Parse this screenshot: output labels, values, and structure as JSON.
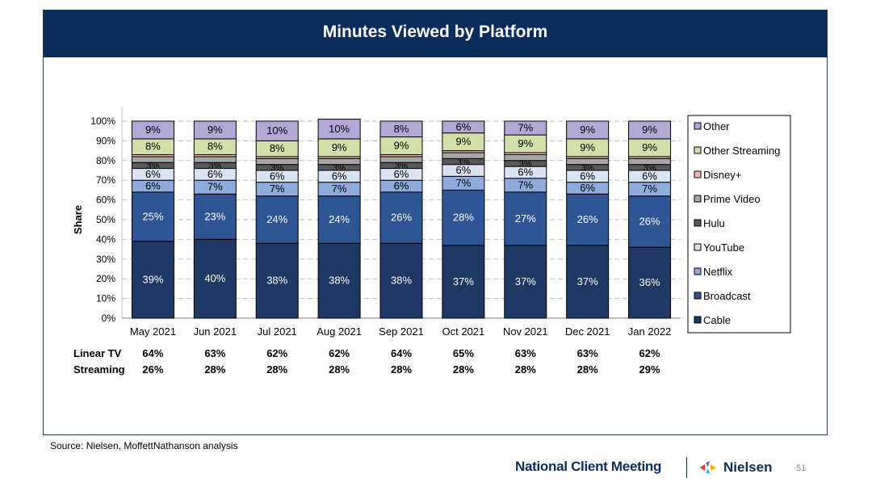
{
  "header": {
    "title": "Minutes Viewed by Platform"
  },
  "source": "Source: Nielsen, MoffettNathanson analysis",
  "footer": {
    "brand": "National Client Meeting",
    "logo_name": "Nielsen",
    "page_number": "51"
  },
  "chart_data": {
    "type": "bar",
    "stacked": true,
    "ylabel": "Share",
    "ylim": [
      0,
      100
    ],
    "y_ticks": [
      "0%",
      "10%",
      "20%",
      "30%",
      "40%",
      "50%",
      "60%",
      "70%",
      "80%",
      "90%",
      "100%"
    ],
    "grid": "dashed horizontal",
    "legend_position": "right",
    "categories": [
      "May 2021",
      "Jun 2021",
      "Jul 2021",
      "Aug 2021",
      "Sep 2021",
      "Oct 2021",
      "Nov 2021",
      "Dec 2021",
      "Jan 2022"
    ],
    "series": [
      {
        "name": "Cable",
        "color": "#203864",
        "values": [
          39,
          40,
          38,
          38,
          38,
          37,
          37,
          37,
          36
        ]
      },
      {
        "name": "Broadcast",
        "color": "#2f5597",
        "values": [
          25,
          23,
          24,
          24,
          26,
          28,
          27,
          26,
          26
        ]
      },
      {
        "name": "Netflix",
        "color": "#8faadc",
        "values": [
          6,
          7,
          7,
          7,
          6,
          7,
          7,
          6,
          7
        ]
      },
      {
        "name": "YouTube",
        "color": "#dae3f3",
        "values": [
          6,
          6,
          6,
          6,
          6,
          6,
          6,
          6,
          6
        ]
      },
      {
        "name": "Hulu",
        "color": "#595959",
        "values": [
          3,
          3,
          3,
          3,
          3,
          3,
          3,
          3,
          3
        ]
      },
      {
        "name": "Prime Video",
        "color": "#a6a6a6",
        "values": [
          3,
          3,
          3,
          3,
          3,
          3,
          3,
          3,
          3
        ]
      },
      {
        "name": "Disney+",
        "color": "#f4b6b6",
        "values": [
          1,
          1,
          1,
          1,
          1,
          1,
          1,
          1,
          1
        ]
      },
      {
        "name": "Other Streaming",
        "color": "#d3dfa8",
        "values": [
          8,
          8,
          8,
          9,
          9,
          9,
          9,
          9,
          9
        ]
      },
      {
        "name": "Other",
        "color": "#b4a7d6",
        "values": [
          9,
          9,
          10,
          10,
          8,
          6,
          7,
          9,
          9
        ]
      }
    ],
    "labels": [
      [
        "39%",
        "40%",
        "38%",
        "38%",
        "38%",
        "37%",
        "37%",
        "37%",
        "36%"
      ],
      [
        "25%",
        "23%",
        "24%",
        "24%",
        "26%",
        "28%",
        "27%",
        "26%",
        "26%"
      ],
      [
        "6%",
        "7%",
        "7%",
        "7%",
        "6%",
        "7%",
        "7%",
        "6%",
        "7%"
      ],
      [
        "6%",
        "6%",
        "6%",
        "6%",
        "6%",
        "6%",
        "6%",
        "6%",
        "6%"
      ],
      [
        "3%",
        "3%",
        "3%",
        "3%",
        "3%",
        "3%",
        "3%",
        "3%",
        "3%"
      ],
      [
        "",
        "",
        "",
        "",
        "",
        "",
        "",
        "",
        ""
      ],
      [
        "",
        "",
        "",
        "",
        "",
        "",
        "",
        "",
        ""
      ],
      [
        "8%",
        "8%",
        "8%",
        "9%",
        "9%",
        "9%",
        "9%",
        "9%",
        "9%"
      ],
      [
        "9%",
        "9%",
        "10%",
        "10%",
        "8%",
        "6%",
        "7%",
        "9%",
        "9%"
      ]
    ],
    "legend_order": [
      "Other",
      "Other Streaming",
      "Disney+",
      "Prime Video",
      "Hulu",
      "YouTube",
      "Netflix",
      "Broadcast",
      "Cable"
    ],
    "summary_rows": [
      {
        "label": "Linear TV",
        "values": [
          "64%",
          "63%",
          "62%",
          "62%",
          "64%",
          "65%",
          "63%",
          "63%",
          "62%"
        ]
      },
      {
        "label": "Streaming",
        "values": [
          "26%",
          "28%",
          "28%",
          "28%",
          "28%",
          "28%",
          "28%",
          "28%",
          "29%"
        ]
      }
    ]
  }
}
